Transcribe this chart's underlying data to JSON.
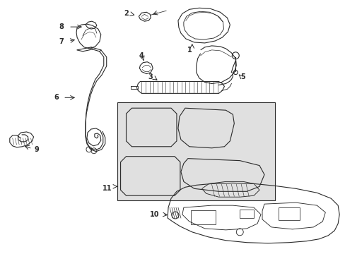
{
  "bg_color": "#ffffff",
  "line_color": "#2a2a2a",
  "label_color": "#000000",
  "gray_fill": "#e0e0e0",
  "fig_width": 4.89,
  "fig_height": 3.6,
  "dpi": 100
}
